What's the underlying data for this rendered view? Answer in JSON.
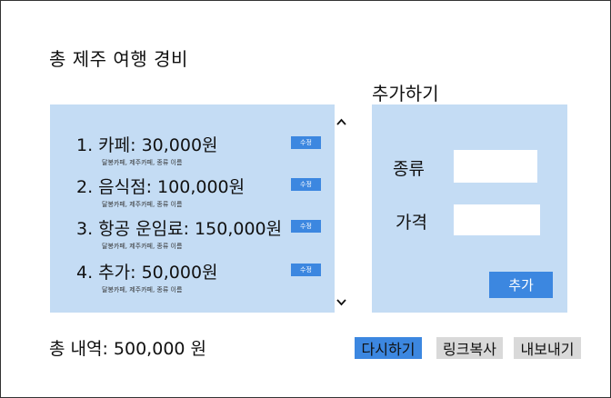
{
  "page": {
    "title": "총 제주 여행 경비"
  },
  "add_form": {
    "title": "추가하기",
    "type_label": "종류",
    "type_value": "",
    "price_label": "가격",
    "price_value": "",
    "submit_label": "추가"
  },
  "expenses": {
    "items": [
      {
        "name": "1. 카페: 30,000원",
        "detail": "달봉카페, 제주카페, 종류 이름",
        "edit_label": "수정"
      },
      {
        "name": "2. 음식점: 100,000원",
        "detail": "달봉카페, 제주카페, 종류 이름",
        "edit_label": "수정"
      },
      {
        "name": "3. 항공 운임료: 150,000원",
        "detail": "달봉카페, 제주카페, 종류 이름",
        "edit_label": "수정"
      },
      {
        "name": "4. 추가: 50,000원",
        "detail": "달봉카페, 제주카페, 종류 이름",
        "edit_label": "수정"
      }
    ],
    "scroll_up_icon": "chevron-up-icon",
    "scroll_down_icon": "chevron-down-icon"
  },
  "footer": {
    "total_summary": "총 내역: 500,000 원",
    "reset_label": "다시하기",
    "copy_link_label": "링크복사",
    "export_label": "내보내기"
  },
  "colors": {
    "panel_bg": "#c4dcf4",
    "accent": "#3c87e0",
    "secondary_button_bg": "#d9d9d9"
  }
}
